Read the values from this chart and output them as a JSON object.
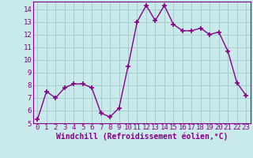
{
  "x": [
    0,
    1,
    2,
    3,
    4,
    5,
    6,
    7,
    8,
    9,
    10,
    11,
    12,
    13,
    14,
    15,
    16,
    17,
    18,
    19,
    20,
    21,
    22,
    23
  ],
  "y": [
    5.3,
    7.5,
    7.0,
    7.8,
    8.1,
    8.1,
    7.8,
    5.8,
    5.5,
    6.2,
    9.5,
    13.0,
    14.3,
    13.1,
    14.3,
    12.8,
    12.3,
    12.3,
    12.5,
    12.0,
    12.2,
    10.7,
    8.2,
    7.2
  ],
  "line_color": "#880088",
  "marker": "+",
  "marker_size": 4,
  "marker_lw": 1.2,
  "bg_color": "#c8eaea",
  "grid_color": "#a8cccc",
  "xlabel": "Windchill (Refroidissement éolien,°C)",
  "xlabel_color": "#880088",
  "tick_color": "#880088",
  "ylim": [
    5,
    14.6
  ],
  "yticks": [
    5,
    6,
    7,
    8,
    9,
    10,
    11,
    12,
    13,
    14
  ],
  "xticks": [
    0,
    1,
    2,
    3,
    4,
    5,
    6,
    7,
    8,
    9,
    10,
    11,
    12,
    13,
    14,
    15,
    16,
    17,
    18,
    19,
    20,
    21,
    22,
    23
  ],
  "spine_color": "#880088",
  "font_size_ticks": 6.5,
  "font_size_xlabel": 7.0,
  "linewidth": 1.0
}
